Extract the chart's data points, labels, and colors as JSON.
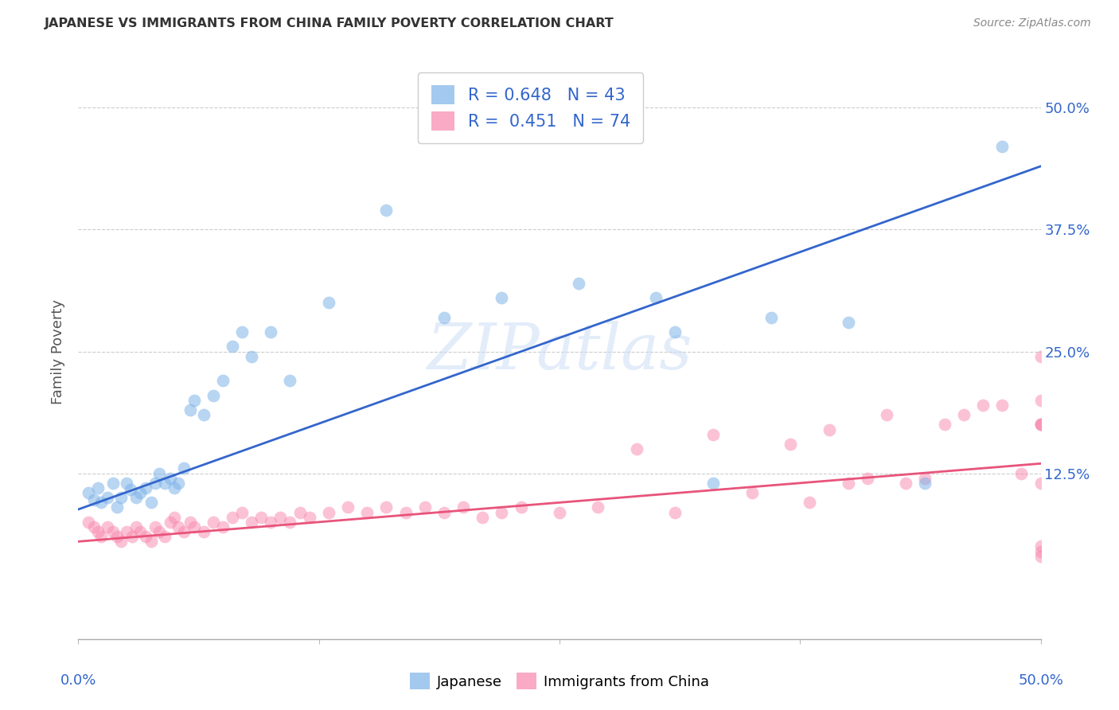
{
  "title": "JAPANESE VS IMMIGRANTS FROM CHINA FAMILY POVERTY CORRELATION CHART",
  "source": "Source: ZipAtlas.com",
  "ylabel": "Family Poverty",
  "xlim": [
    0.0,
    0.5
  ],
  "ylim": [
    -0.045,
    0.545
  ],
  "blue_R": 0.648,
  "blue_N": 43,
  "pink_R": 0.451,
  "pink_N": 74,
  "blue_color": "#7EB3E8",
  "pink_color": "#F987AC",
  "blue_line_color": "#3366CC",
  "pink_line_color": "#E8547A",
  "legend_label_blue": "Japanese",
  "legend_label_pink": "Immigrants from China",
  "blue_line_x0": 0.0,
  "blue_line_x1": 0.5,
  "blue_line_y0": 0.088,
  "blue_line_y1": 0.44,
  "pink_line_x0": 0.0,
  "pink_line_x1": 0.5,
  "pink_line_y0": 0.055,
  "pink_line_y1": 0.135,
  "blue_x": [
    0.005,
    0.008,
    0.01,
    0.012,
    0.015,
    0.018,
    0.02,
    0.022,
    0.025,
    0.027,
    0.03,
    0.032,
    0.035,
    0.038,
    0.04,
    0.042,
    0.045,
    0.048,
    0.05,
    0.052,
    0.055,
    0.058,
    0.06,
    0.065,
    0.07,
    0.075,
    0.08,
    0.085,
    0.09,
    0.1,
    0.11,
    0.13,
    0.16,
    0.19,
    0.22,
    0.26,
    0.3,
    0.31,
    0.33,
    0.36,
    0.4,
    0.44,
    0.48
  ],
  "blue_y": [
    0.105,
    0.098,
    0.11,
    0.095,
    0.1,
    0.115,
    0.09,
    0.1,
    0.115,
    0.108,
    0.1,
    0.105,
    0.11,
    0.095,
    0.115,
    0.125,
    0.115,
    0.12,
    0.11,
    0.115,
    0.13,
    0.19,
    0.2,
    0.185,
    0.205,
    0.22,
    0.255,
    0.27,
    0.245,
    0.27,
    0.22,
    0.3,
    0.395,
    0.285,
    0.305,
    0.32,
    0.305,
    0.27,
    0.115,
    0.285,
    0.28,
    0.115,
    0.46
  ],
  "pink_x": [
    0.005,
    0.008,
    0.01,
    0.012,
    0.015,
    0.018,
    0.02,
    0.022,
    0.025,
    0.028,
    0.03,
    0.032,
    0.035,
    0.038,
    0.04,
    0.042,
    0.045,
    0.048,
    0.05,
    0.052,
    0.055,
    0.058,
    0.06,
    0.065,
    0.07,
    0.075,
    0.08,
    0.085,
    0.09,
    0.095,
    0.1,
    0.105,
    0.11,
    0.115,
    0.12,
    0.13,
    0.14,
    0.15,
    0.16,
    0.17,
    0.18,
    0.19,
    0.2,
    0.21,
    0.22,
    0.23,
    0.25,
    0.27,
    0.29,
    0.31,
    0.33,
    0.35,
    0.37,
    0.38,
    0.39,
    0.4,
    0.41,
    0.42,
    0.43,
    0.44,
    0.45,
    0.46,
    0.47,
    0.48,
    0.49,
    0.5,
    0.5,
    0.5,
    0.5,
    0.5,
    0.5,
    0.5,
    0.5,
    0.5
  ],
  "pink_y": [
    0.075,
    0.07,
    0.065,
    0.06,
    0.07,
    0.065,
    0.06,
    0.055,
    0.065,
    0.06,
    0.07,
    0.065,
    0.06,
    0.055,
    0.07,
    0.065,
    0.06,
    0.075,
    0.08,
    0.07,
    0.065,
    0.075,
    0.07,
    0.065,
    0.075,
    0.07,
    0.08,
    0.085,
    0.075,
    0.08,
    0.075,
    0.08,
    0.075,
    0.085,
    0.08,
    0.085,
    0.09,
    0.085,
    0.09,
    0.085,
    0.09,
    0.085,
    0.09,
    0.08,
    0.085,
    0.09,
    0.085,
    0.09,
    0.15,
    0.085,
    0.165,
    0.105,
    0.155,
    0.095,
    0.17,
    0.115,
    0.12,
    0.185,
    0.115,
    0.12,
    0.175,
    0.185,
    0.195,
    0.195,
    0.125,
    0.175,
    0.115,
    0.175,
    0.045,
    0.04,
    0.175,
    0.245,
    0.05,
    0.2
  ],
  "ytick_positions": [
    0.0,
    0.125,
    0.25,
    0.375,
    0.5
  ],
  "ytick_labels_right": [
    "",
    "12.5%",
    "25.0%",
    "37.5%",
    "50.0%"
  ],
  "xtick_positions": [
    0.0,
    0.125,
    0.25,
    0.375,
    0.5
  ]
}
